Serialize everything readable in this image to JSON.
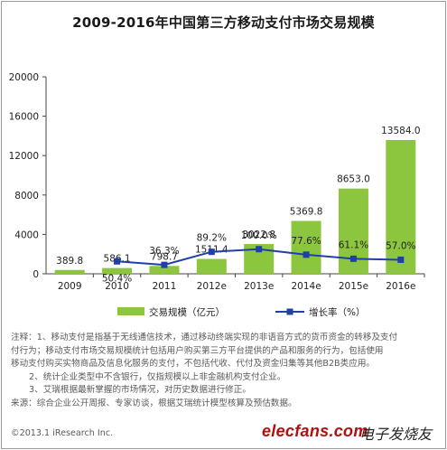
{
  "title": "2009-2016年中国第三方移动支付市场交易规模",
  "chart_data": {
    "type": "bar+line",
    "categories": [
      "2009",
      "2010",
      "2011",
      "2012e",
      "2013e",
      "2014e",
      "2015e",
      "2016e"
    ],
    "bar_series": {
      "name": "交易规模（亿元）",
      "values": [
        389.8,
        586.1,
        798.7,
        1511.4,
        3022.8,
        5369.8,
        8653.0,
        13584.0
      ],
      "labels": [
        "389.8",
        "586.1",
        "798.7",
        "1511.4",
        "3022.8",
        "5369.8",
        "8653.0",
        "13584.0"
      ],
      "color": "#8cc63f"
    },
    "line_series": {
      "name": "增长率（%）",
      "values": [
        null,
        50.4,
        36.3,
        89.2,
        100.0,
        77.6,
        61.1,
        57.0
      ],
      "labels": [
        "",
        "50.4%",
        "36.3%",
        "89.2%",
        "100.0%",
        "77.6%",
        "61.1%",
        "57.0%"
      ],
      "color": "#1f3faa"
    },
    "yticks": [
      "0",
      "4000",
      "8000",
      "12000",
      "16000",
      "20000"
    ],
    "ylim": [
      0,
      20000
    ],
    "legend_position": "bottom"
  },
  "notes": {
    "line1": "注释：1、移动支付是指基于无线通信技术，通过移动终端实现的非语音方式的货币资金的转移及支付",
    "line2": "付行为；移动支付市场交易规模统计包括用户购买第三方平台提供的产品和服务的行为，包括使用",
    "line3": "移动支付购买实物商品及信息化服务的支付，不包括代收、代付及资金归集等其他B2B类应用。",
    "line4": "2、统计企业类型中不含银行，仅指规模以上非金融机构支付企业。",
    "line5": "3、艾瑞根据最新掌握的市场情况，对历史数据进行修正。",
    "line6": "来源：综合企业公开周报、专家访谈，根据艾瑞统计模型核算及预估数据。"
  },
  "copyright": "©2013.1 iResearch Inc.",
  "brand": "elecfans.com",
  "brand_cn": "电子发烧友"
}
